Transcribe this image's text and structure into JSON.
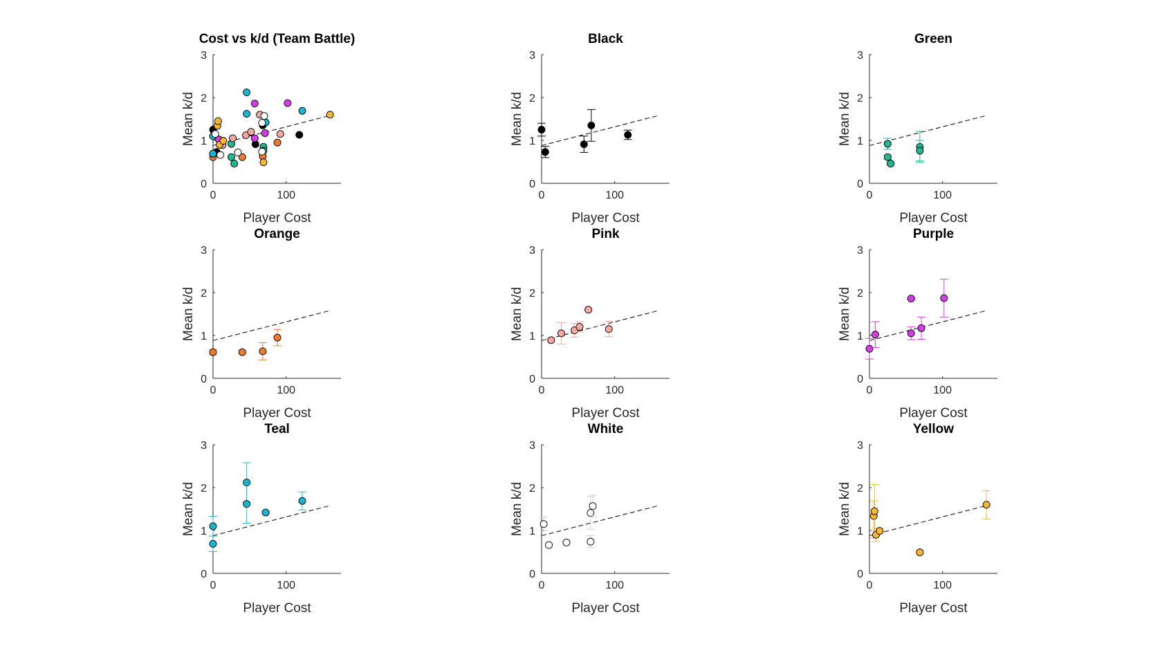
{
  "chart_data": [
    {
      "type": "scatter",
      "title": "Cost vs k/d (Team Battle)",
      "xlabel": "Player Cost",
      "ylabel": "Mean k/d",
      "xlim": [
        0,
        175
      ],
      "ylim": [
        0,
        3
      ],
      "xticks": [
        0,
        100
      ],
      "yticks": [
        0,
        1,
        2,
        3
      ],
      "fit_line": {
        "x": [
          0,
          160
        ],
        "y": [
          0.88,
          1.58
        ]
      },
      "error_bars": false,
      "series": [
        {
          "color": "#000000",
          "points": [
            {
              "x": 0,
              "y": 1.25
            },
            {
              "x": 5,
              "y": 0.73
            },
            {
              "x": 58,
              "y": 0.91
            },
            {
              "x": 68,
              "y": 1.35
            },
            {
              "x": 118,
              "y": 1.13
            }
          ]
        },
        {
          "color": "#21b892",
          "points": [
            {
              "x": 25,
              "y": 0.92
            },
            {
              "x": 25,
              "y": 0.61
            },
            {
              "x": 29,
              "y": 0.46
            },
            {
              "x": 69,
              "y": 0.85
            },
            {
              "x": 69,
              "y": 0.76
            }
          ]
        },
        {
          "color": "#ee7b30",
          "points": [
            {
              "x": 0,
              "y": 0.61
            },
            {
              "x": 40,
              "y": 0.61
            },
            {
              "x": 68,
              "y": 0.63
            },
            {
              "x": 88,
              "y": 0.95
            }
          ]
        },
        {
          "color": "#f4a9a2",
          "points": [
            {
              "x": 13,
              "y": 0.89
            },
            {
              "x": 27,
              "y": 1.05
            },
            {
              "x": 45,
              "y": 1.12
            },
            {
              "x": 52,
              "y": 1.2
            },
            {
              "x": 64,
              "y": 1.6
            },
            {
              "x": 92,
              "y": 1.15
            }
          ]
        },
        {
          "color": "#d63ce8",
          "points": [
            {
              "x": 0,
              "y": 0.69
            },
            {
              "x": 8,
              "y": 1.02
            },
            {
              "x": 57,
              "y": 1.86
            },
            {
              "x": 57,
              "y": 1.05
            },
            {
              "x": 71,
              "y": 1.17
            },
            {
              "x": 102,
              "y": 1.87
            }
          ]
        },
        {
          "color": "#1ab7d4",
          "points": [
            {
              "x": 0,
              "y": 1.1
            },
            {
              "x": 0,
              "y": 0.69
            },
            {
              "x": 46,
              "y": 2.12
            },
            {
              "x": 46,
              "y": 1.62
            },
            {
              "x": 72,
              "y": 1.42
            },
            {
              "x": 122,
              "y": 1.69
            }
          ]
        },
        {
          "color": "#ffffff",
          "points": [
            {
              "x": 3,
              "y": 1.15
            },
            {
              "x": 10,
              "y": 0.66
            },
            {
              "x": 34,
              "y": 0.72
            },
            {
              "x": 67,
              "y": 0.74
            },
            {
              "x": 67,
              "y": 1.41
            },
            {
              "x": 70,
              "y": 1.57
            }
          ]
        },
        {
          "color": "#f7b733",
          "points": [
            {
              "x": 6,
              "y": 1.34
            },
            {
              "x": 7,
              "y": 1.45
            },
            {
              "x": 9,
              "y": 0.9
            },
            {
              "x": 14,
              "y": 0.99
            },
            {
              "x": 69,
              "y": 0.49
            },
            {
              "x": 160,
              "y": 1.6
            }
          ]
        }
      ]
    },
    {
      "type": "scatter",
      "title": "Black",
      "xlabel": "Player Cost",
      "ylabel": "Mean k/d",
      "xlim": [
        0,
        175
      ],
      "ylim": [
        0,
        3
      ],
      "xticks": [
        0,
        100
      ],
      "yticks": [
        0,
        1,
        2,
        3
      ],
      "fit_line": {
        "x": [
          0,
          160
        ],
        "y": [
          0.88,
          1.58
        ]
      },
      "error_bars": true,
      "series": [
        {
          "color": "#000000",
          "points": [
            {
              "x": 0,
              "y": 1.25,
              "err": 0.15
            },
            {
              "x": 5,
              "y": 0.73,
              "err": 0.13
            },
            {
              "x": 58,
              "y": 0.91,
              "err": 0.19
            },
            {
              "x": 68,
              "y": 1.35,
              "err": 0.37
            },
            {
              "x": 118,
              "y": 1.13,
              "err": 0.11
            }
          ]
        }
      ]
    },
    {
      "type": "scatter",
      "title": "Green",
      "xlabel": "Player Cost",
      "ylabel": "Mean k/d",
      "xlim": [
        0,
        175
      ],
      "ylim": [
        0,
        3
      ],
      "xticks": [
        0,
        100
      ],
      "yticks": [
        0,
        1,
        2,
        3
      ],
      "fit_line": {
        "x": [
          0,
          160
        ],
        "y": [
          0.88,
          1.58
        ]
      },
      "error_bars": true,
      "series": [
        {
          "color": "#21b892",
          "points": [
            {
              "x": 25,
              "y": 0.92,
              "err": 0.13
            },
            {
              "x": 25,
              "y": 0.61,
              "err": 0.05
            },
            {
              "x": 29,
              "y": 0.46,
              "err": 0.03
            },
            {
              "x": 69,
              "y": 0.85,
              "err": 0.36
            },
            {
              "x": 69,
              "y": 0.76,
              "err": 0.24
            }
          ]
        }
      ]
    },
    {
      "type": "scatter",
      "title": "Orange",
      "xlabel": "Player Cost",
      "ylabel": "Mean k/d",
      "xlim": [
        0,
        175
      ],
      "ylim": [
        0,
        3
      ],
      "xticks": [
        0,
        100
      ],
      "yticks": [
        0,
        1,
        2,
        3
      ],
      "fit_line": {
        "x": [
          0,
          160
        ],
        "y": [
          0.88,
          1.58
        ]
      },
      "error_bars": true,
      "series": [
        {
          "color": "#ee7b30",
          "points": [
            {
              "x": 0,
              "y": 0.61,
              "err": 0.06
            },
            {
              "x": 40,
              "y": 0.61,
              "err": 0.04
            },
            {
              "x": 68,
              "y": 0.63,
              "err": 0.2
            },
            {
              "x": 88,
              "y": 0.95,
              "err": 0.19
            }
          ]
        }
      ]
    },
    {
      "type": "scatter",
      "title": "Pink",
      "xlabel": "Player Cost",
      "ylabel": "Mean k/d",
      "xlim": [
        0,
        175
      ],
      "ylim": [
        0,
        3
      ],
      "xticks": [
        0,
        100
      ],
      "yticks": [
        0,
        1,
        2,
        3
      ],
      "fit_line": {
        "x": [
          0,
          160
        ],
        "y": [
          0.88,
          1.58
        ]
      },
      "error_bars": true,
      "series": [
        {
          "color": "#f4a9a2",
          "points": [
            {
              "x": 13,
              "y": 0.89,
              "err": 0.05
            },
            {
              "x": 27,
              "y": 1.05,
              "err": 0.25
            },
            {
              "x": 45,
              "y": 1.12,
              "err": 0.16
            },
            {
              "x": 52,
              "y": 1.2,
              "err": 0.12
            },
            {
              "x": 64,
              "y": 1.6,
              "err": 0.03
            },
            {
              "x": 92,
              "y": 1.15,
              "err": 0.18
            }
          ]
        }
      ]
    },
    {
      "type": "scatter",
      "title": "Purple",
      "xlabel": "Player Cost",
      "ylabel": "Mean k/d",
      "xlim": [
        0,
        175
      ],
      "ylim": [
        0,
        3
      ],
      "xticks": [
        0,
        100
      ],
      "yticks": [
        0,
        1,
        2,
        3
      ],
      "fit_line": {
        "x": [
          0,
          160
        ],
        "y": [
          0.88,
          1.58
        ]
      },
      "error_bars": true,
      "series": [
        {
          "color": "#d63ce8",
          "points": [
            {
              "x": 0,
              "y": 0.69,
              "err": 0.24
            },
            {
              "x": 8,
              "y": 1.02,
              "err": 0.3
            },
            {
              "x": 57,
              "y": 1.86,
              "err": 0.03
            },
            {
              "x": 57,
              "y": 1.05,
              "err": 0.15
            },
            {
              "x": 71,
              "y": 1.17,
              "err": 0.26
            },
            {
              "x": 102,
              "y": 1.87,
              "err": 0.44
            }
          ]
        }
      ]
    },
    {
      "type": "scatter",
      "title": "Teal",
      "xlabel": "Player Cost",
      "ylabel": "Mean k/d",
      "xlim": [
        0,
        175
      ],
      "ylim": [
        0,
        3
      ],
      "xticks": [
        0,
        100
      ],
      "yticks": [
        0,
        1,
        2,
        3
      ],
      "fit_line": {
        "x": [
          0,
          160
        ],
        "y": [
          0.88,
          1.58
        ]
      },
      "error_bars": true,
      "series": [
        {
          "color": "#1ab7d4",
          "points": [
            {
              "x": 0,
              "y": 1.1,
              "err": 0.23
            },
            {
              "x": 0,
              "y": 0.69,
              "err": 0.18
            },
            {
              "x": 46,
              "y": 2.12,
              "err": 0.46
            },
            {
              "x": 46,
              "y": 1.62,
              "err": 0.45
            },
            {
              "x": 72,
              "y": 1.42,
              "err": 0.03
            },
            {
              "x": 122,
              "y": 1.69,
              "err": 0.21
            }
          ]
        }
      ]
    },
    {
      "type": "scatter",
      "title": "White",
      "xlabel": "Player Cost",
      "ylabel": "Mean k/d",
      "xlim": [
        0,
        175
      ],
      "ylim": [
        0,
        3
      ],
      "xticks": [
        0,
        100
      ],
      "yticks": [
        0,
        1,
        2,
        3
      ],
      "fit_line": {
        "x": [
          0,
          160
        ],
        "y": [
          0.88,
          1.58
        ]
      },
      "error_bars": true,
      "series": [
        {
          "color": "#ffffff",
          "points": [
            {
              "x": 3,
              "y": 1.15,
              "err": 0.16
            },
            {
              "x": 10,
              "y": 0.66,
              "err": 0.05
            },
            {
              "x": 34,
              "y": 0.72,
              "err": 0.04
            },
            {
              "x": 67,
              "y": 0.74,
              "err": 0.14
            },
            {
              "x": 67,
              "y": 1.41,
              "err": 0.38
            },
            {
              "x": 70,
              "y": 1.57,
              "err": 0.25
            }
          ]
        }
      ]
    },
    {
      "type": "scatter",
      "title": "Yellow",
      "xlabel": "Player Cost",
      "ylabel": "Mean k/d",
      "xlim": [
        0,
        175
      ],
      "ylim": [
        0,
        3
      ],
      "xticks": [
        0,
        100
      ],
      "yticks": [
        0,
        1,
        2,
        3
      ],
      "fit_line": {
        "x": [
          0,
          160
        ],
        "y": [
          0.88,
          1.58
        ]
      },
      "error_bars": true,
      "series": [
        {
          "color": "#f7b733",
          "points": [
            {
              "x": 6,
              "y": 1.34,
              "err": 0.35
            },
            {
              "x": 7,
              "y": 1.45,
              "err": 0.62
            },
            {
              "x": 9,
              "y": 0.9,
              "err": 0.16
            },
            {
              "x": 14,
              "y": 0.99,
              "err": 0.04
            },
            {
              "x": 69,
              "y": 0.49,
              "err": 0.04
            },
            {
              "x": 160,
              "y": 1.6,
              "err": 0.33
            }
          ]
        }
      ]
    }
  ]
}
